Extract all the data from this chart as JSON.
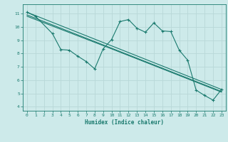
{
  "background_color": "#cdeaea",
  "line_color": "#1a7a6e",
  "grid_color": "#b8d8d8",
  "xlabel": "Humidex (Indice chaleur)",
  "xlim": [
    -0.5,
    23.5
  ],
  "ylim": [
    3.7,
    11.7
  ],
  "xticks": [
    0,
    1,
    2,
    3,
    4,
    5,
    6,
    7,
    8,
    9,
    10,
    11,
    12,
    13,
    14,
    15,
    16,
    17,
    18,
    19,
    20,
    21,
    22,
    23
  ],
  "yticks": [
    4,
    5,
    6,
    7,
    8,
    9,
    10,
    11
  ],
  "zigzag_x": [
    0,
    1,
    3,
    4,
    5,
    6,
    7,
    8,
    9,
    10,
    11,
    12,
    13,
    14,
    15,
    16,
    17,
    18,
    19,
    20,
    21,
    22,
    23
  ],
  "zigzag_y": [
    11.1,
    10.8,
    9.5,
    8.3,
    8.25,
    7.8,
    7.4,
    6.85,
    8.35,
    9.05,
    10.4,
    10.55,
    9.9,
    9.6,
    10.3,
    9.7,
    9.65,
    8.25,
    7.5,
    5.25,
    4.85,
    4.5,
    5.3
  ],
  "line1_x": [
    0,
    23
  ],
  "line1_y": [
    11.1,
    5.3
  ],
  "line2_x": [
    0,
    23
  ],
  "line2_y": [
    10.9,
    5.15
  ],
  "line3_x": [
    0,
    10,
    23
  ],
  "line3_y": [
    10.8,
    8.35,
    5.1
  ]
}
